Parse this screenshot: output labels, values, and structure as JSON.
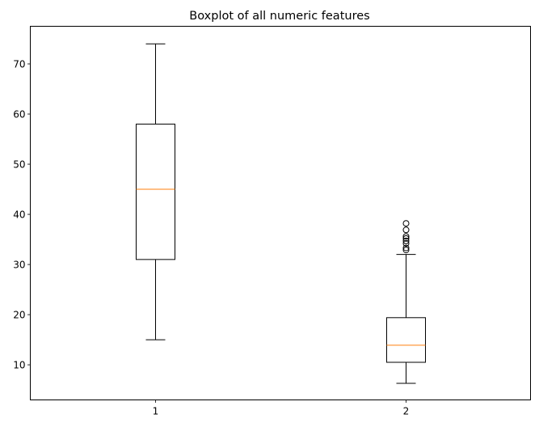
{
  "chart_data": {
    "type": "boxplot",
    "title": "Boxplot of all numeric features",
    "xlabel": "",
    "ylabel": "",
    "categories": [
      "1",
      "2"
    ],
    "ylim": [
      3,
      77.5
    ],
    "yticks": [
      10,
      20,
      30,
      40,
      50,
      60,
      70
    ],
    "grid": false,
    "boxes": [
      {
        "label": "1",
        "whisker_low": 15,
        "q1": 31,
        "median": 45,
        "q3": 58,
        "whisker_high": 74,
        "outliers": []
      },
      {
        "label": "2",
        "whisker_low": 6.3,
        "q1": 10.5,
        "median": 13.9,
        "q3": 19.4,
        "whisker_high": 32,
        "outliers": [
          32.9,
          33.3,
          34.2,
          34.7,
          35.2,
          35.6,
          36.9,
          38.2
        ]
      }
    ],
    "colors": {
      "box": "#000000",
      "median": "#ff7f0e",
      "outlier": "#000000"
    }
  }
}
